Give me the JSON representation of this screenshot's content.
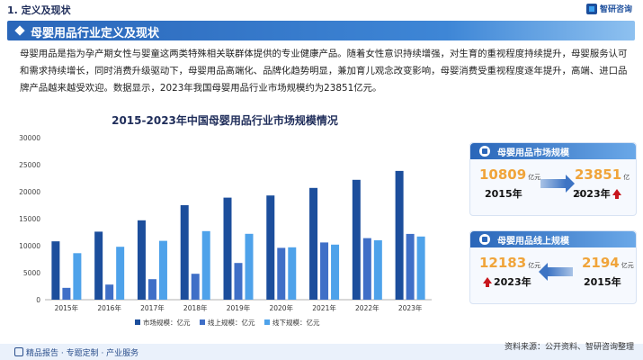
{
  "header": {
    "section": "1. 定义及现状",
    "logo_text": "智研咨询"
  },
  "title": "母婴用品行业定义及现状",
  "paragraph": "母婴用品是指为孕产期女性与婴童这两类特殊相关联群体提供的专业健康产品。随着女性意识持续增强，对生育的重视程度持续提升，母婴服务认可和需求持续增长，同时消费升级驱动下，母婴用品高端化、品牌化趋势明显，兼加育儿观念改变影响，母婴消费受重视程度逐年提升，高端、进口品牌产品越来越受欢迎。数据显示，2023年我国母婴用品行业市场规模约为23851亿元。",
  "chart_data": {
    "type": "bar",
    "title": "2015-2023年中国母婴用品行业市场规模情况",
    "categories": [
      "2015年",
      "2016年",
      "2017年",
      "2018年",
      "2019年",
      "2020年",
      "2021年",
      "2022年",
      "2023年"
    ],
    "series": [
      {
        "name": "市场规模：亿元",
        "color": "#1c4e9c",
        "values": [
          10809,
          12600,
          14700,
          17500,
          18900,
          19300,
          20700,
          22200,
          23851
        ]
      },
      {
        "name": "线上规模：亿元",
        "color": "#3f6fc7",
        "values": [
          2194,
          2800,
          3800,
          4800,
          6800,
          9600,
          10600,
          11400,
          12183
        ]
      },
      {
        "name": "线下规模：亿元",
        "color": "#4ea2ea",
        "values": [
          8615,
          9800,
          10900,
          12700,
          12200,
          9700,
          10200,
          11000,
          11700
        ]
      }
    ],
    "ylim": [
      0,
      30000
    ],
    "yticks": [
      "0",
      "5000",
      "10000",
      "15000",
      "20000",
      "25000",
      "30000"
    ],
    "grid": false,
    "legend": "bottom"
  },
  "panel_market": {
    "title": "母婴用品市场规模",
    "from_value": "10809",
    "from_unit": "亿元",
    "from_year": "2015年",
    "to_value": "23851",
    "to_unit": "亿元",
    "to_year": "2023年"
  },
  "panel_online": {
    "title": "母婴用品线上规模",
    "left_value": "12183",
    "left_unit": "亿元",
    "left_year": "2023年",
    "right_value": "2194",
    "right_unit": "亿元",
    "right_year": "2015年"
  },
  "footer": {
    "left": "精品报告 · 专题定制 · 产业服务",
    "source": "资料来源：公开资料、智研咨询整理"
  }
}
